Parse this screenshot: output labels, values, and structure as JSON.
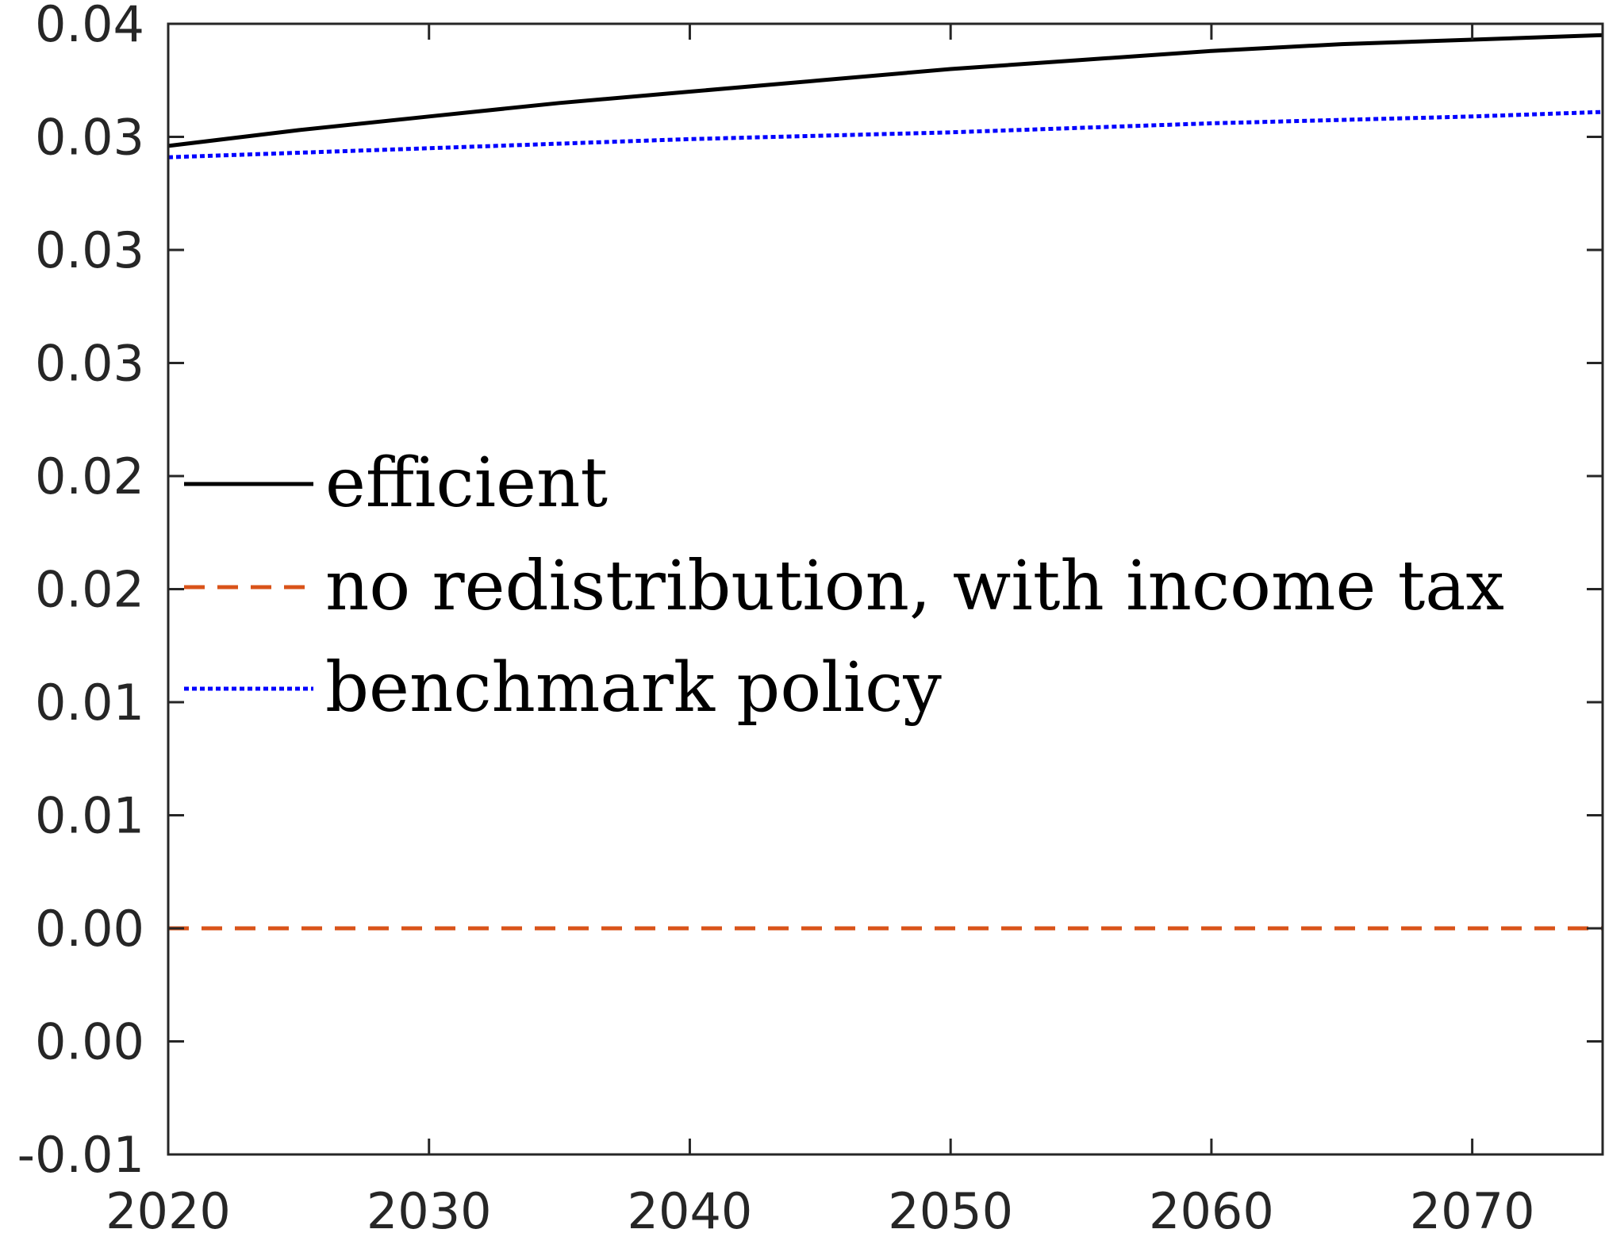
{
  "chart_data": {
    "type": "line",
    "title": "",
    "xlabel": "",
    "ylabel": "",
    "xlim": [
      2020,
      2075
    ],
    "ylim": [
      -0.01,
      0.04
    ],
    "grid": false,
    "legend_placement": "middle-left",
    "x_ticks": [
      2020,
      2030,
      2040,
      2050,
      2060,
      2070
    ],
    "x_tick_labels": [
      "2020",
      "2030",
      "2040",
      "2050",
      "2060",
      "2070"
    ],
    "y_ticks": [
      -0.01,
      -0.005,
      0.0,
      0.005,
      0.01,
      0.015,
      0.02,
      0.025,
      0.03,
      0.035,
      0.04
    ],
    "y_tick_labels": [
      "-0.01",
      "0.00",
      "0.00",
      "0.01",
      "0.01",
      "0.02",
      "0.02",
      "0.03",
      "0.03",
      "0.03",
      "0.04"
    ],
    "series": [
      {
        "name": "efficient",
        "color": "#000000",
        "line_style": "solid",
        "x": [
          2020,
          2025,
          2030,
          2035,
          2040,
          2045,
          2050,
          2055,
          2060,
          2065,
          2070,
          2075
        ],
        "y": [
          0.0346,
          0.0353,
          0.0359,
          0.0365,
          0.037,
          0.0375,
          0.038,
          0.0384,
          0.0388,
          0.0391,
          0.0393,
          0.0395
        ]
      },
      {
        "name": "no redistribution, with income tax",
        "color": "#D95319",
        "line_style": "dashed",
        "x": [
          2020,
          2075
        ],
        "y": [
          0.0,
          0.0
        ]
      },
      {
        "name": "benchmark policy",
        "color": "#0000FF",
        "line_style": "dotted",
        "x": [
          2020,
          2030,
          2040,
          2050,
          2060,
          2070,
          2075
        ],
        "y": [
          0.0341,
          0.0345,
          0.0349,
          0.0352,
          0.0356,
          0.0359,
          0.0361
        ]
      }
    ]
  }
}
